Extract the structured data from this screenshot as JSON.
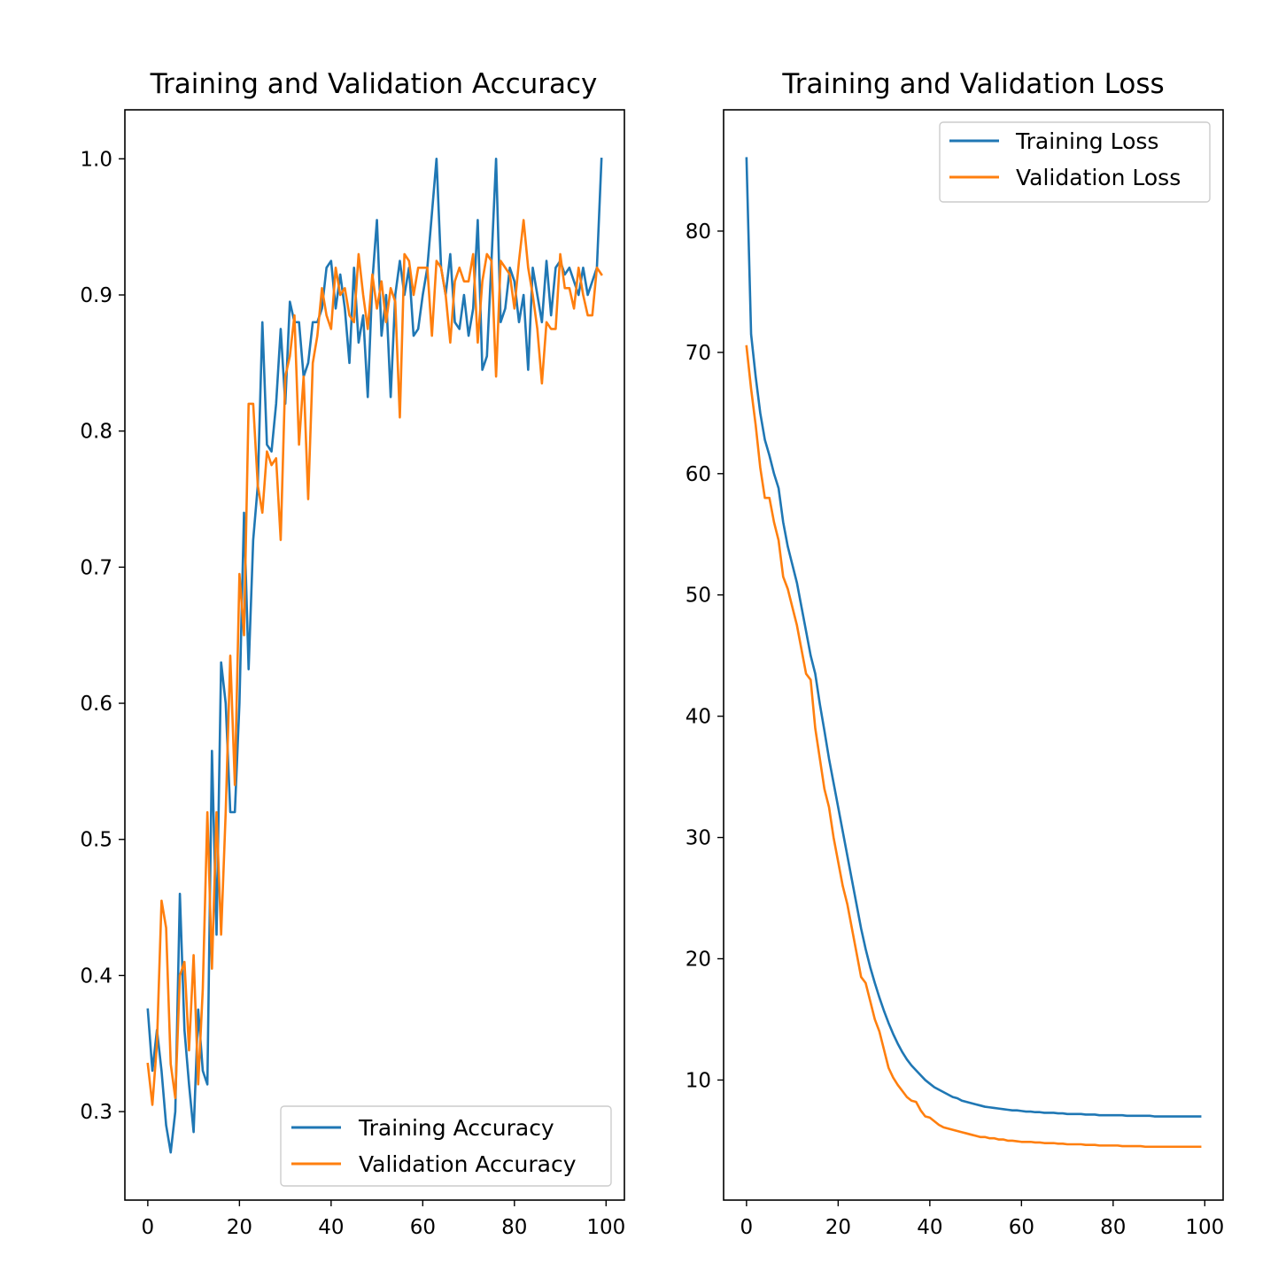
{
  "chart_data": [
    {
      "type": "line",
      "title": "Training and Validation Accuracy",
      "xlabel": "",
      "ylabel": "",
      "xlim": [
        -5,
        104
      ],
      "ylim": [
        0.235,
        1.036
      ],
      "xticks": [
        0,
        20,
        40,
        60,
        80,
        100
      ],
      "xtick_labels": [
        "0",
        "20",
        "40",
        "60",
        "80",
        "100"
      ],
      "yticks": [
        0.3,
        0.4,
        0.5,
        0.6,
        0.7,
        0.8,
        0.9,
        1.0
      ],
      "ytick_labels": [
        "0.3",
        "0.4",
        "0.5",
        "0.6",
        "0.7",
        "0.8",
        "0.9",
        "1.0"
      ],
      "grid": false,
      "legend": "lower-right",
      "series": [
        {
          "name": "Training Accuracy",
          "color": "#1f77b4",
          "values": [
            0.375,
            0.33,
            0.36,
            0.33,
            0.29,
            0.27,
            0.3,
            0.46,
            0.36,
            0.32,
            0.285,
            0.375,
            0.33,
            0.32,
            0.565,
            0.43,
            0.63,
            0.6,
            0.52,
            0.52,
            0.6,
            0.74,
            0.625,
            0.72,
            0.76,
            0.88,
            0.79,
            0.785,
            0.82,
            0.875,
            0.82,
            0.895,
            0.88,
            0.88,
            0.84,
            0.85,
            0.88,
            0.88,
            0.89,
            0.92,
            0.925,
            0.89,
            0.915,
            0.89,
            0.85,
            0.92,
            0.865,
            0.885,
            0.825,
            0.91,
            0.955,
            0.87,
            0.9,
            0.825,
            0.9,
            0.925,
            0.9,
            0.92,
            0.87,
            0.875,
            0.9,
            0.92,
            0.96,
            1.0,
            0.92,
            0.9,
            0.93,
            0.88,
            0.875,
            0.9,
            0.87,
            0.89,
            0.955,
            0.845,
            0.855,
            0.925,
            1.0,
            0.88,
            0.89,
            0.92,
            0.91,
            0.88,
            0.9,
            0.845,
            0.92,
            0.9,
            0.88,
            0.925,
            0.885,
            0.92,
            0.925,
            0.915,
            0.92,
            0.91,
            0.9,
            0.92,
            0.9,
            0.91,
            0.92,
            1.0
          ]
        },
        {
          "name": "Validation Accuracy",
          "color": "#ff7f0e",
          "values": [
            0.335,
            0.305,
            0.35,
            0.455,
            0.435,
            0.335,
            0.31,
            0.4,
            0.41,
            0.345,
            0.415,
            0.32,
            0.39,
            0.52,
            0.405,
            0.52,
            0.43,
            0.52,
            0.635,
            0.54,
            0.695,
            0.65,
            0.82,
            0.82,
            0.76,
            0.74,
            0.785,
            0.775,
            0.78,
            0.72,
            0.84,
            0.855,
            0.885,
            0.79,
            0.84,
            0.75,
            0.85,
            0.87,
            0.905,
            0.885,
            0.875,
            0.92,
            0.9,
            0.905,
            0.885,
            0.88,
            0.93,
            0.9,
            0.875,
            0.915,
            0.89,
            0.91,
            0.88,
            0.905,
            0.895,
            0.81,
            0.93,
            0.925,
            0.9,
            0.92,
            0.92,
            0.92,
            0.87,
            0.925,
            0.92,
            0.9,
            0.865,
            0.91,
            0.92,
            0.91,
            0.91,
            0.93,
            0.865,
            0.91,
            0.93,
            0.925,
            0.84,
            0.925,
            0.92,
            0.915,
            0.89,
            0.925,
            0.955,
            0.92,
            0.9,
            0.875,
            0.835,
            0.88,
            0.875,
            0.875,
            0.93,
            0.905,
            0.905,
            0.89,
            0.92,
            0.9,
            0.885,
            0.885,
            0.92,
            0.915
          ]
        }
      ]
    },
    {
      "type": "line",
      "title": "Training and Validation Loss",
      "xlabel": "",
      "ylabel": "",
      "xlim": [
        -5,
        104
      ],
      "ylim": [
        0.1,
        90.0
      ],
      "xticks": [
        0,
        20,
        40,
        60,
        80,
        100
      ],
      "xtick_labels": [
        "0",
        "20",
        "40",
        "60",
        "80",
        "100"
      ],
      "yticks": [
        10,
        20,
        30,
        40,
        50,
        60,
        70,
        80
      ],
      "ytick_labels": [
        "10",
        "20",
        "30",
        "40",
        "50",
        "60",
        "70",
        "80"
      ],
      "grid": false,
      "legend": "upper-right",
      "series": [
        {
          "name": "Training Loss",
          "color": "#1f77b4",
          "values": [
            86.0,
            71.5,
            68.0,
            65.0,
            62.8,
            61.5,
            60.0,
            58.8,
            56.0,
            54.0,
            52.5,
            51.0,
            49.0,
            47.0,
            45.0,
            43.5,
            41.0,
            38.8,
            36.5,
            34.5,
            32.5,
            30.5,
            28.5,
            26.5,
            24.5,
            22.5,
            20.8,
            19.3,
            18.0,
            16.8,
            15.7,
            14.7,
            13.8,
            13.0,
            12.3,
            11.7,
            11.2,
            10.8,
            10.4,
            10.0,
            9.7,
            9.4,
            9.2,
            9.0,
            8.8,
            8.6,
            8.5,
            8.3,
            8.2,
            8.1,
            8.0,
            7.9,
            7.8,
            7.75,
            7.7,
            7.65,
            7.6,
            7.55,
            7.5,
            7.5,
            7.45,
            7.4,
            7.4,
            7.35,
            7.35,
            7.3,
            7.3,
            7.3,
            7.25,
            7.25,
            7.2,
            7.2,
            7.2,
            7.2,
            7.15,
            7.15,
            7.15,
            7.1,
            7.1,
            7.1,
            7.1,
            7.1,
            7.1,
            7.05,
            7.05,
            7.05,
            7.05,
            7.05,
            7.05,
            7.0,
            7.0,
            7.0,
            7.0,
            7.0,
            7.0,
            7.0,
            7.0,
            7.0,
            7.0,
            7.0
          ]
        },
        {
          "name": "Validation Loss",
          "color": "#ff7f0e",
          "values": [
            70.5,
            67.0,
            64.0,
            60.5,
            58.0,
            58.0,
            56.0,
            54.5,
            51.5,
            50.5,
            49.0,
            47.5,
            45.5,
            43.5,
            43.0,
            39.0,
            36.5,
            34.0,
            32.5,
            30.0,
            28.0,
            26.0,
            24.5,
            22.5,
            20.5,
            18.5,
            18.0,
            16.5,
            15.0,
            14.0,
            12.5,
            11.0,
            10.2,
            9.6,
            9.1,
            8.6,
            8.3,
            8.2,
            7.5,
            7.0,
            6.9,
            6.6,
            6.3,
            6.1,
            6.0,
            5.9,
            5.8,
            5.7,
            5.6,
            5.5,
            5.4,
            5.3,
            5.3,
            5.2,
            5.2,
            5.1,
            5.1,
            5.0,
            5.0,
            4.95,
            4.9,
            4.9,
            4.9,
            4.85,
            4.85,
            4.8,
            4.8,
            4.8,
            4.75,
            4.75,
            4.7,
            4.7,
            4.7,
            4.7,
            4.65,
            4.65,
            4.65,
            4.6,
            4.6,
            4.6,
            4.6,
            4.6,
            4.55,
            4.55,
            4.55,
            4.55,
            4.55,
            4.5,
            4.5,
            4.5,
            4.5,
            4.5,
            4.5,
            4.5,
            4.5,
            4.5,
            4.5,
            4.5,
            4.5,
            4.5
          ]
        }
      ]
    }
  ]
}
